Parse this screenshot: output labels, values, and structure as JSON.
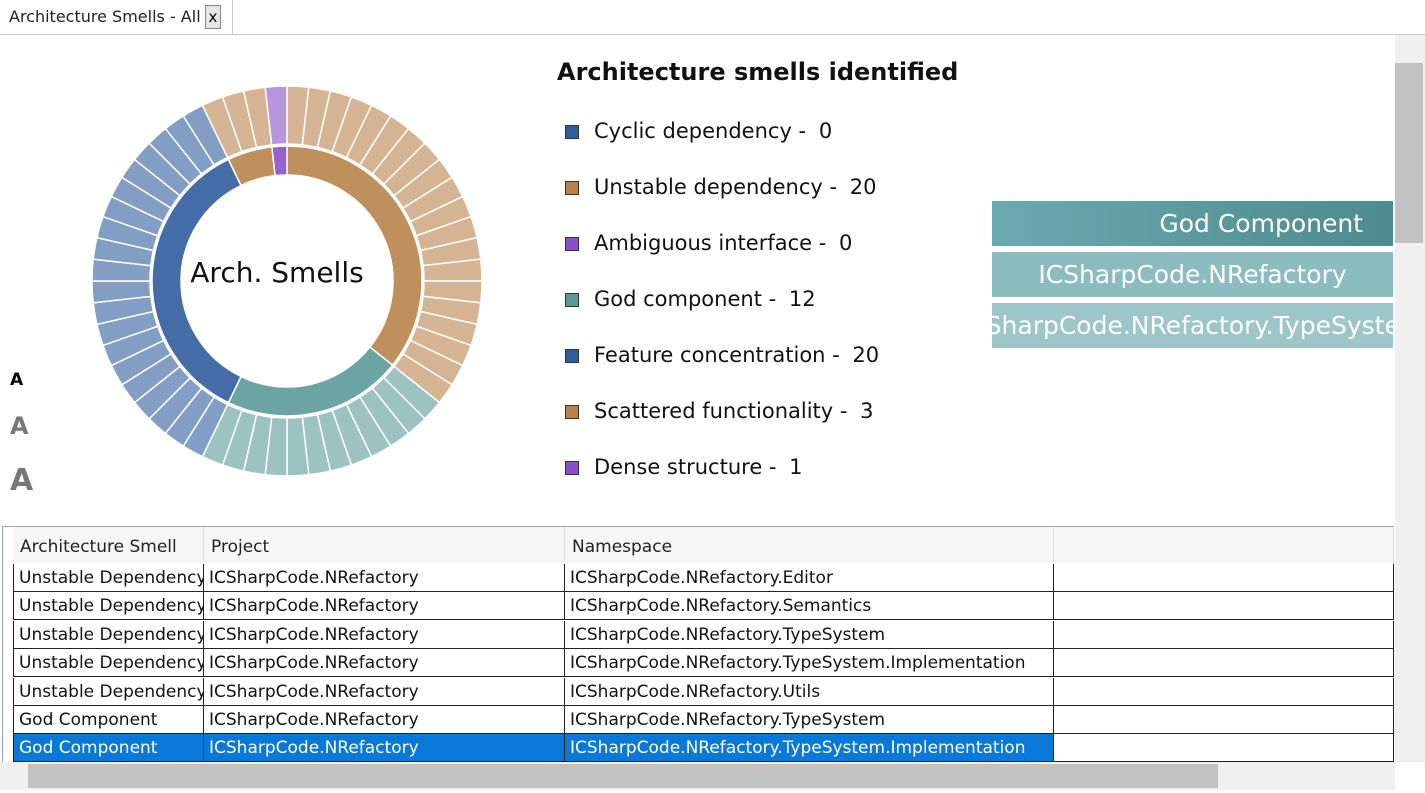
{
  "tab": {
    "title": "Architecture Smells - All",
    "close": "x"
  },
  "chart": {
    "center_label": "Arch. Smells"
  },
  "legend": {
    "title": "Architecture smells identified",
    "items": [
      {
        "label": "Cyclic dependency - ",
        "count": 0,
        "color": "#2f5d9e"
      },
      {
        "label": "Unstable dependency - ",
        "count": 20,
        "color": "#b8824a"
      },
      {
        "label": "Ambiguous interface - ",
        "count": 0,
        "color": "#8a4fc8"
      },
      {
        "label": "God component - ",
        "count": 12,
        "color": "#5a9a98"
      },
      {
        "label": "Feature concentration - ",
        "count": 20,
        "color": "#2f5d9e"
      },
      {
        "label": "Scattered functionality - ",
        "count": 3,
        "color": "#b8824a"
      },
      {
        "label": "Dense structure - ",
        "count": 1,
        "color": "#8a4fc8"
      }
    ]
  },
  "breadcrumb": [
    "God Component",
    "ICSharpCode.NRefactory",
    "ICSharpCode.NRefactory.TypeSystem"
  ],
  "font_sizes": [
    "A",
    "A",
    "A"
  ],
  "table": {
    "columns": [
      "Architecture Smell",
      "Project",
      "Namespace"
    ],
    "rows": [
      [
        "Unstable Dependency",
        "ICSharpCode.NRefactory",
        "ICSharpCode.NRefactory.Editor"
      ],
      [
        "Unstable Dependency",
        "ICSharpCode.NRefactory",
        "ICSharpCode.NRefactory.Semantics"
      ],
      [
        "Unstable Dependency",
        "ICSharpCode.NRefactory",
        "ICSharpCode.NRefactory.TypeSystem"
      ],
      [
        "Unstable Dependency",
        "ICSharpCode.NRefactory",
        "ICSharpCode.NRefactory.TypeSystem.Implementation"
      ],
      [
        "Unstable Dependency",
        "ICSharpCode.NRefactory",
        "ICSharpCode.NRefactory.Utils"
      ],
      [
        "God Component",
        "ICSharpCode.NRefactory",
        "ICSharpCode.NRefactory.TypeSystem"
      ],
      [
        "God Component",
        "ICSharpCode.NRefactory",
        "ICSharpCode.NRefactory.TypeSystem.Implementation"
      ]
    ],
    "selected_row": 6
  }
}
